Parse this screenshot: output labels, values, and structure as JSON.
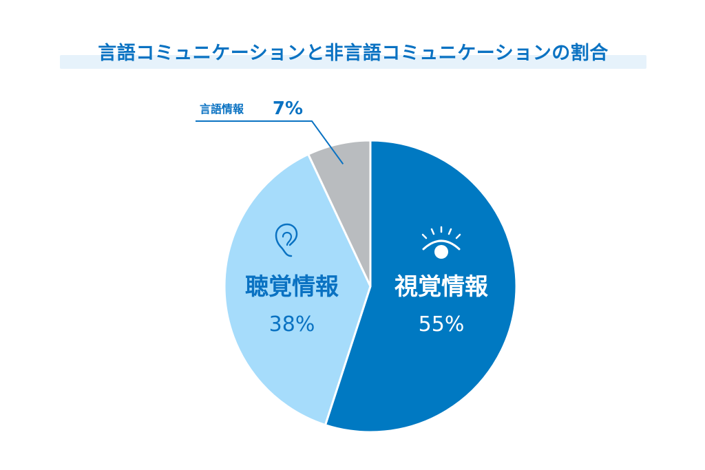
{
  "title": "言語コミュニケーションと非言語コミュニケーションの割合",
  "chart_data": {
    "type": "pie",
    "title": "言語コミュニケーションと非言語コミュニケーションの割合",
    "slices": [
      {
        "label": "視覚情報",
        "value": 55,
        "value_label": "55%",
        "color": "#0079c2",
        "label_color": "#ffffff",
        "icon": "eye-icon"
      },
      {
        "label": "聴覚情報",
        "value": 38,
        "value_label": "38%",
        "color": "#a6dcfb",
        "label_color": "#0a72c2",
        "icon": "ear-icon"
      },
      {
        "label": "言語情報",
        "value": 7,
        "value_label": "7%",
        "color": "#b9bcbf",
        "label_color": "#0a72c2",
        "icon": ""
      }
    ],
    "start": "12 o'clock",
    "direction": "clockwise",
    "legend": "none",
    "callout_color": "#0a72c2",
    "slice_border_color": "#ffffff"
  }
}
